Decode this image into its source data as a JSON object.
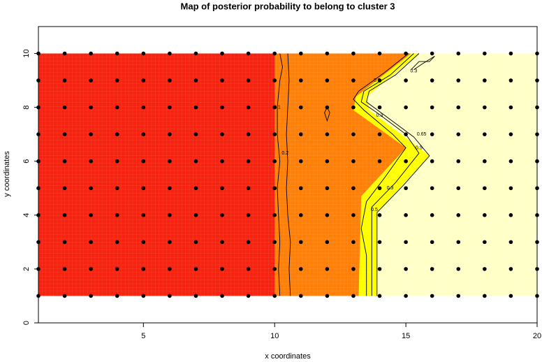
{
  "chart_data": {
    "type": "heatmap",
    "title": "Map of posterior probability to belong to cluster  3",
    "xlabel": "x coordinates",
    "ylabel": "y coordinates",
    "xlim": [
      1,
      20
    ],
    "ylim": [
      0,
      11
    ],
    "x_ticks": [
      5,
      10,
      15,
      20
    ],
    "y_ticks": [
      0,
      2,
      4,
      6,
      8,
      10
    ],
    "grid": false,
    "map_extent": {
      "x": [
        1,
        20
      ],
      "y": [
        1,
        10
      ]
    },
    "color_scale": [
      "#ff0000",
      "#ff8000",
      "#ffff00",
      "#ffffcc"
    ],
    "color_regions": [
      {
        "name": "red",
        "color": "#f5230f",
        "boundary": [
          [
            10,
            10
          ],
          [
            10,
            1
          ]
        ]
      },
      {
        "name": "orange",
        "color": "#ff8008",
        "boundary": [
          [
            15.2,
            10
          ],
          [
            13.1,
            8.4
          ],
          [
            13.0,
            7.9
          ],
          [
            15.0,
            6.5
          ],
          [
            13.3,
            4.7
          ],
          [
            13.2,
            1
          ]
        ]
      },
      {
        "name": "yellow",
        "color": "#ffff00",
        "boundary": [
          [
            15.5,
            10
          ],
          [
            13.5,
            8.4
          ],
          [
            13.6,
            7.9
          ],
          [
            15.9,
            6.2
          ],
          [
            13.9,
            4.1
          ],
          [
            13.9,
            1
          ]
        ]
      },
      {
        "name": "pale",
        "color": "#ffffc8"
      }
    ],
    "contours": [
      {
        "level": "0.1",
        "points": [
          [
            10.2,
            10
          ],
          [
            10.3,
            9.5
          ],
          [
            10.2,
            9
          ],
          [
            10.1,
            8
          ],
          [
            10.1,
            7
          ],
          [
            10.2,
            6
          ],
          [
            10.1,
            5
          ],
          [
            10.15,
            4
          ],
          [
            10.2,
            3
          ],
          [
            10.15,
            2
          ],
          [
            10.2,
            1
          ]
        ],
        "labels": [
          {
            "x": 10.1,
            "y": 8.0
          }
        ]
      },
      {
        "level": "0.2",
        "points": [
          [
            10.5,
            10
          ],
          [
            10.55,
            9
          ],
          [
            10.5,
            8
          ],
          [
            10.45,
            7
          ],
          [
            10.5,
            6
          ],
          [
            10.45,
            5
          ],
          [
            10.5,
            4
          ],
          [
            10.6,
            3
          ],
          [
            10.55,
            2
          ],
          [
            10.6,
            1
          ]
        ],
        "labels": [
          {
            "x": 10.4,
            "y": 6.3
          }
        ]
      },
      {
        "level": "0.3",
        "points": [
          [
            15.1,
            10
          ],
          [
            14.2,
            9.3
          ],
          [
            13.2,
            8.6
          ],
          [
            13.0,
            8.3
          ],
          [
            13.4,
            7.9
          ],
          [
            14.5,
            7.0
          ],
          [
            15.0,
            6.5
          ],
          [
            14.2,
            5.4
          ],
          [
            13.5,
            4.5
          ],
          [
            13.3,
            3.5
          ],
          [
            13.5,
            2.5
          ],
          [
            13.5,
            1
          ]
        ],
        "labels": [
          {
            "x": 13.9,
            "y": 9.0
          },
          {
            "x": 14.0,
            "y": 7.7
          },
          {
            "x": 14.4,
            "y": 5.0
          }
        ]
      },
      {
        "level": "0.5",
        "points": [
          [
            15.3,
            10
          ],
          [
            14.4,
            9.2
          ],
          [
            13.4,
            8.6
          ],
          [
            13.3,
            8.2
          ],
          [
            13.9,
            7.8
          ],
          [
            15.0,
            7.0
          ],
          [
            15.5,
            6.3
          ],
          [
            14.6,
            5.2
          ],
          [
            13.7,
            4.3
          ],
          [
            13.7,
            3.0
          ],
          [
            13.7,
            1
          ]
        ],
        "labels": [
          {
            "x": 15.5,
            "y": 6.5
          },
          {
            "x": 13.8,
            "y": 4.2
          }
        ]
      },
      {
        "level": "0.65",
        "points": [
          [
            15.5,
            10
          ],
          [
            14.6,
            9.2
          ],
          [
            13.6,
            8.6
          ],
          [
            13.5,
            8.2
          ],
          [
            14.2,
            7.7
          ],
          [
            15.3,
            6.9
          ],
          [
            15.9,
            6.2
          ],
          [
            14.9,
            5.1
          ],
          [
            13.9,
            4.1
          ],
          [
            13.9,
            2.5
          ],
          [
            13.9,
            1
          ]
        ],
        "labels": [
          {
            "x": 15.6,
            "y": 7.0
          }
        ]
      },
      {
        "level": "0.3",
        "points": [
          [
            15.2,
            9.4
          ],
          [
            15.5,
            9.7
          ],
          [
            15.9,
            9.7
          ],
          [
            16.1,
            9.9
          ],
          [
            15.6,
            9.6
          ],
          [
            15.3,
            9.4
          ]
        ],
        "labels": [
          {
            "x": 15.3,
            "y": 9.35
          }
        ]
      },
      {
        "level": "0.3",
        "points": [
          [
            12.0,
            8.0
          ],
          [
            12.1,
            7.8
          ],
          [
            12.0,
            7.5
          ],
          [
            11.9,
            7.8
          ],
          [
            12.0,
            8.0
          ]
        ],
        "labels": []
      }
    ],
    "scatter_points": {
      "x": [
        1,
        2,
        3,
        4,
        5,
        6,
        7,
        8,
        9,
        10,
        11,
        12,
        13,
        14,
        15,
        16,
        17,
        18,
        19,
        20
      ],
      "y": [
        1,
        2,
        3,
        4,
        5,
        6,
        7,
        8,
        9,
        10
      ]
    }
  }
}
